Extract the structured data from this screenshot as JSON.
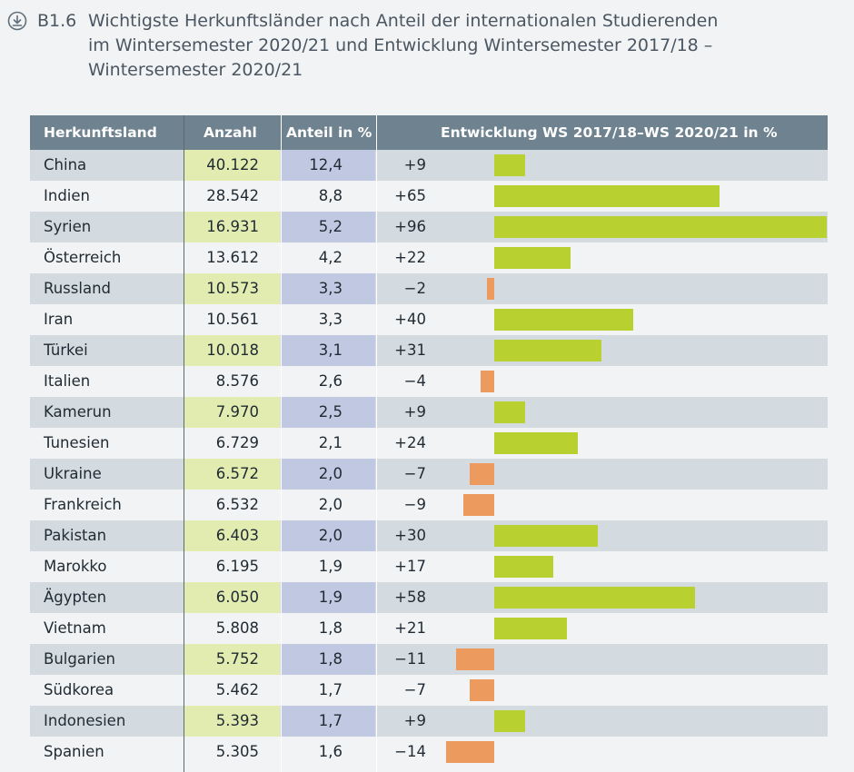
{
  "figure": {
    "number": "B1.6",
    "title_lines": [
      "Wichtigste Herkunftsländer nach Anteil der internationalen Studierenden",
      "im Wintersemester 2020/21 und Entwicklung Wintersemester 2017/18 –",
      "Wintersemester 2020/21"
    ],
    "icon": "download-icon"
  },
  "colors": {
    "header": "#6e8290",
    "positive_bar": "#b8d130",
    "negative_bar": "#ec9a5d",
    "row_shade": "#d3dbe1"
  },
  "chart_data": {
    "type": "table",
    "columns": [
      "Herkunftsland",
      "Anzahl",
      "Anteil in %",
      "Entwicklung WS 2017/18–WS 2020/21 in %"
    ],
    "rows": [
      {
        "country": "China",
        "count": "40.122",
        "share": "12,4",
        "change_label": "+9",
        "change": 9
      },
      {
        "country": "Indien",
        "count": "28.542",
        "share": "8,8",
        "change_label": "+65",
        "change": 65
      },
      {
        "country": "Syrien",
        "count": "16.931",
        "share": "5,2",
        "change_label": "+96",
        "change": 96
      },
      {
        "country": "Österreich",
        "count": "13.612",
        "share": "4,2",
        "change_label": "+22",
        "change": 22
      },
      {
        "country": "Russland",
        "count": "10.573",
        "share": "3,3",
        "change_label": "−2",
        "change": -2
      },
      {
        "country": "Iran",
        "count": "10.561",
        "share": "3,3",
        "change_label": "+40",
        "change": 40
      },
      {
        "country": "Türkei",
        "count": "10.018",
        "share": "3,1",
        "change_label": "+31",
        "change": 31
      },
      {
        "country": "Italien",
        "count": "8.576",
        "share": "2,6",
        "change_label": "−4",
        "change": -4
      },
      {
        "country": "Kamerun",
        "count": "7.970",
        "share": "2,5",
        "change_label": "+9",
        "change": 9
      },
      {
        "country": "Tunesien",
        "count": "6.729",
        "share": "2,1",
        "change_label": "+24",
        "change": 24
      },
      {
        "country": "Ukraine",
        "count": "6.572",
        "share": "2,0",
        "change_label": "−7",
        "change": -7
      },
      {
        "country": "Frankreich",
        "count": "6.532",
        "share": "2,0",
        "change_label": "−9",
        "change": -9
      },
      {
        "country": "Pakistan",
        "count": "6.403",
        "share": "2,0",
        "change_label": "+30",
        "change": 30
      },
      {
        "country": "Marokko",
        "count": "6.195",
        "share": "1,9",
        "change_label": "+17",
        "change": 17
      },
      {
        "country": "Ägypten",
        "count": "6.050",
        "share": "1,9",
        "change_label": "+58",
        "change": 58
      },
      {
        "country": "Vietnam",
        "count": "5.808",
        "share": "1,8",
        "change_label": "+21",
        "change": 21
      },
      {
        "country": "Bulgarien",
        "count": "5.752",
        "share": "1,8",
        "change_label": "−11",
        "change": -11
      },
      {
        "country": "Südkorea",
        "count": "5.462",
        "share": "1,7",
        "change_label": "−7",
        "change": -7
      },
      {
        "country": "Indonesien",
        "count": "5.393",
        "share": "1,7",
        "change_label": "+9",
        "change": 9
      },
      {
        "country": "Spanien",
        "count": "5.305",
        "share": "1,6",
        "change_label": "−14",
        "change": -14
      }
    ],
    "bar_range": [
      -14,
      96
    ]
  }
}
